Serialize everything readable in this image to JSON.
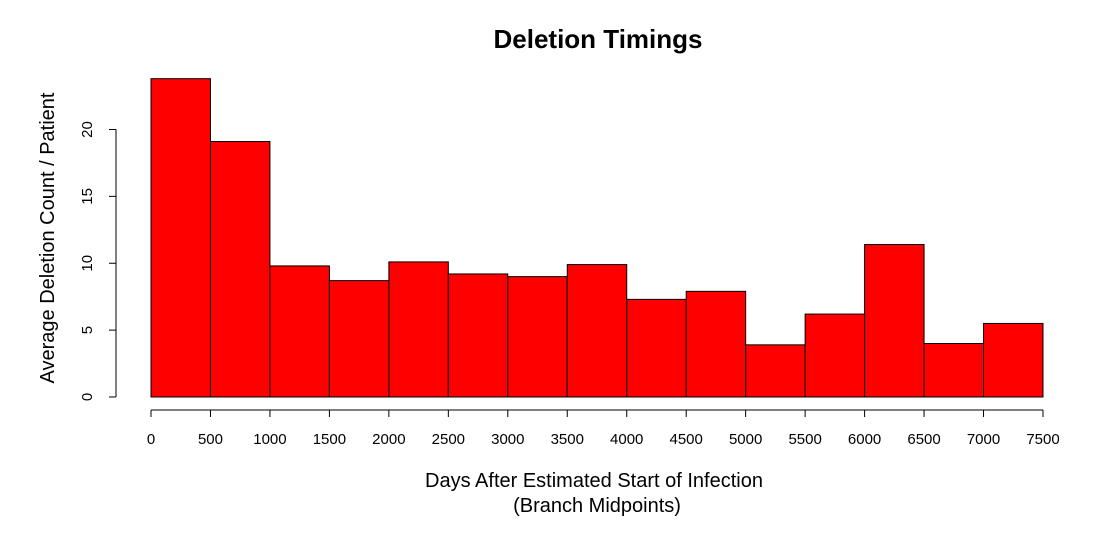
{
  "chart_data": {
    "type": "bar",
    "title": "Deletion Timings",
    "xlabel": "Days After Estimated Start of Infection",
    "xlabel_sub": "(Branch Midpoints)",
    "ylabel": "Average Deletion Count / Patient",
    "bins": [
      {
        "start": 0,
        "end": 500,
        "value": 23.8
      },
      {
        "start": 500,
        "end": 1000,
        "value": 19.1
      },
      {
        "start": 1000,
        "end": 1500,
        "value": 9.8
      },
      {
        "start": 1500,
        "end": 2000,
        "value": 8.7
      },
      {
        "start": 2000,
        "end": 2500,
        "value": 10.1
      },
      {
        "start": 2500,
        "end": 3000,
        "value": 9.2
      },
      {
        "start": 3000,
        "end": 3500,
        "value": 9.0
      },
      {
        "start": 3500,
        "end": 4000,
        "value": 9.9
      },
      {
        "start": 4000,
        "end": 4500,
        "value": 7.3
      },
      {
        "start": 4500,
        "end": 5000,
        "value": 7.9
      },
      {
        "start": 5000,
        "end": 5500,
        "value": 3.9
      },
      {
        "start": 5500,
        "end": 6000,
        "value": 6.2
      },
      {
        "start": 6000,
        "end": 6500,
        "value": 11.4
      },
      {
        "start": 6500,
        "end": 7000,
        "value": 4.0
      },
      {
        "start": 7000,
        "end": 7500,
        "value": 5.5
      }
    ],
    "xticks": [
      "0",
      "500",
      "1000",
      "1500",
      "2000",
      "2500",
      "3000",
      "3500",
      "4000",
      "4500",
      "5000",
      "5500",
      "6000",
      "6500",
      "7000",
      "7500"
    ],
    "yticks": [
      "0",
      "5",
      "10",
      "15",
      "20"
    ],
    "xlim": [
      0,
      7500
    ],
    "ylim": [
      0,
      24
    ],
    "bar_color": "#ff0000",
    "grid": false,
    "legend": "none"
  }
}
